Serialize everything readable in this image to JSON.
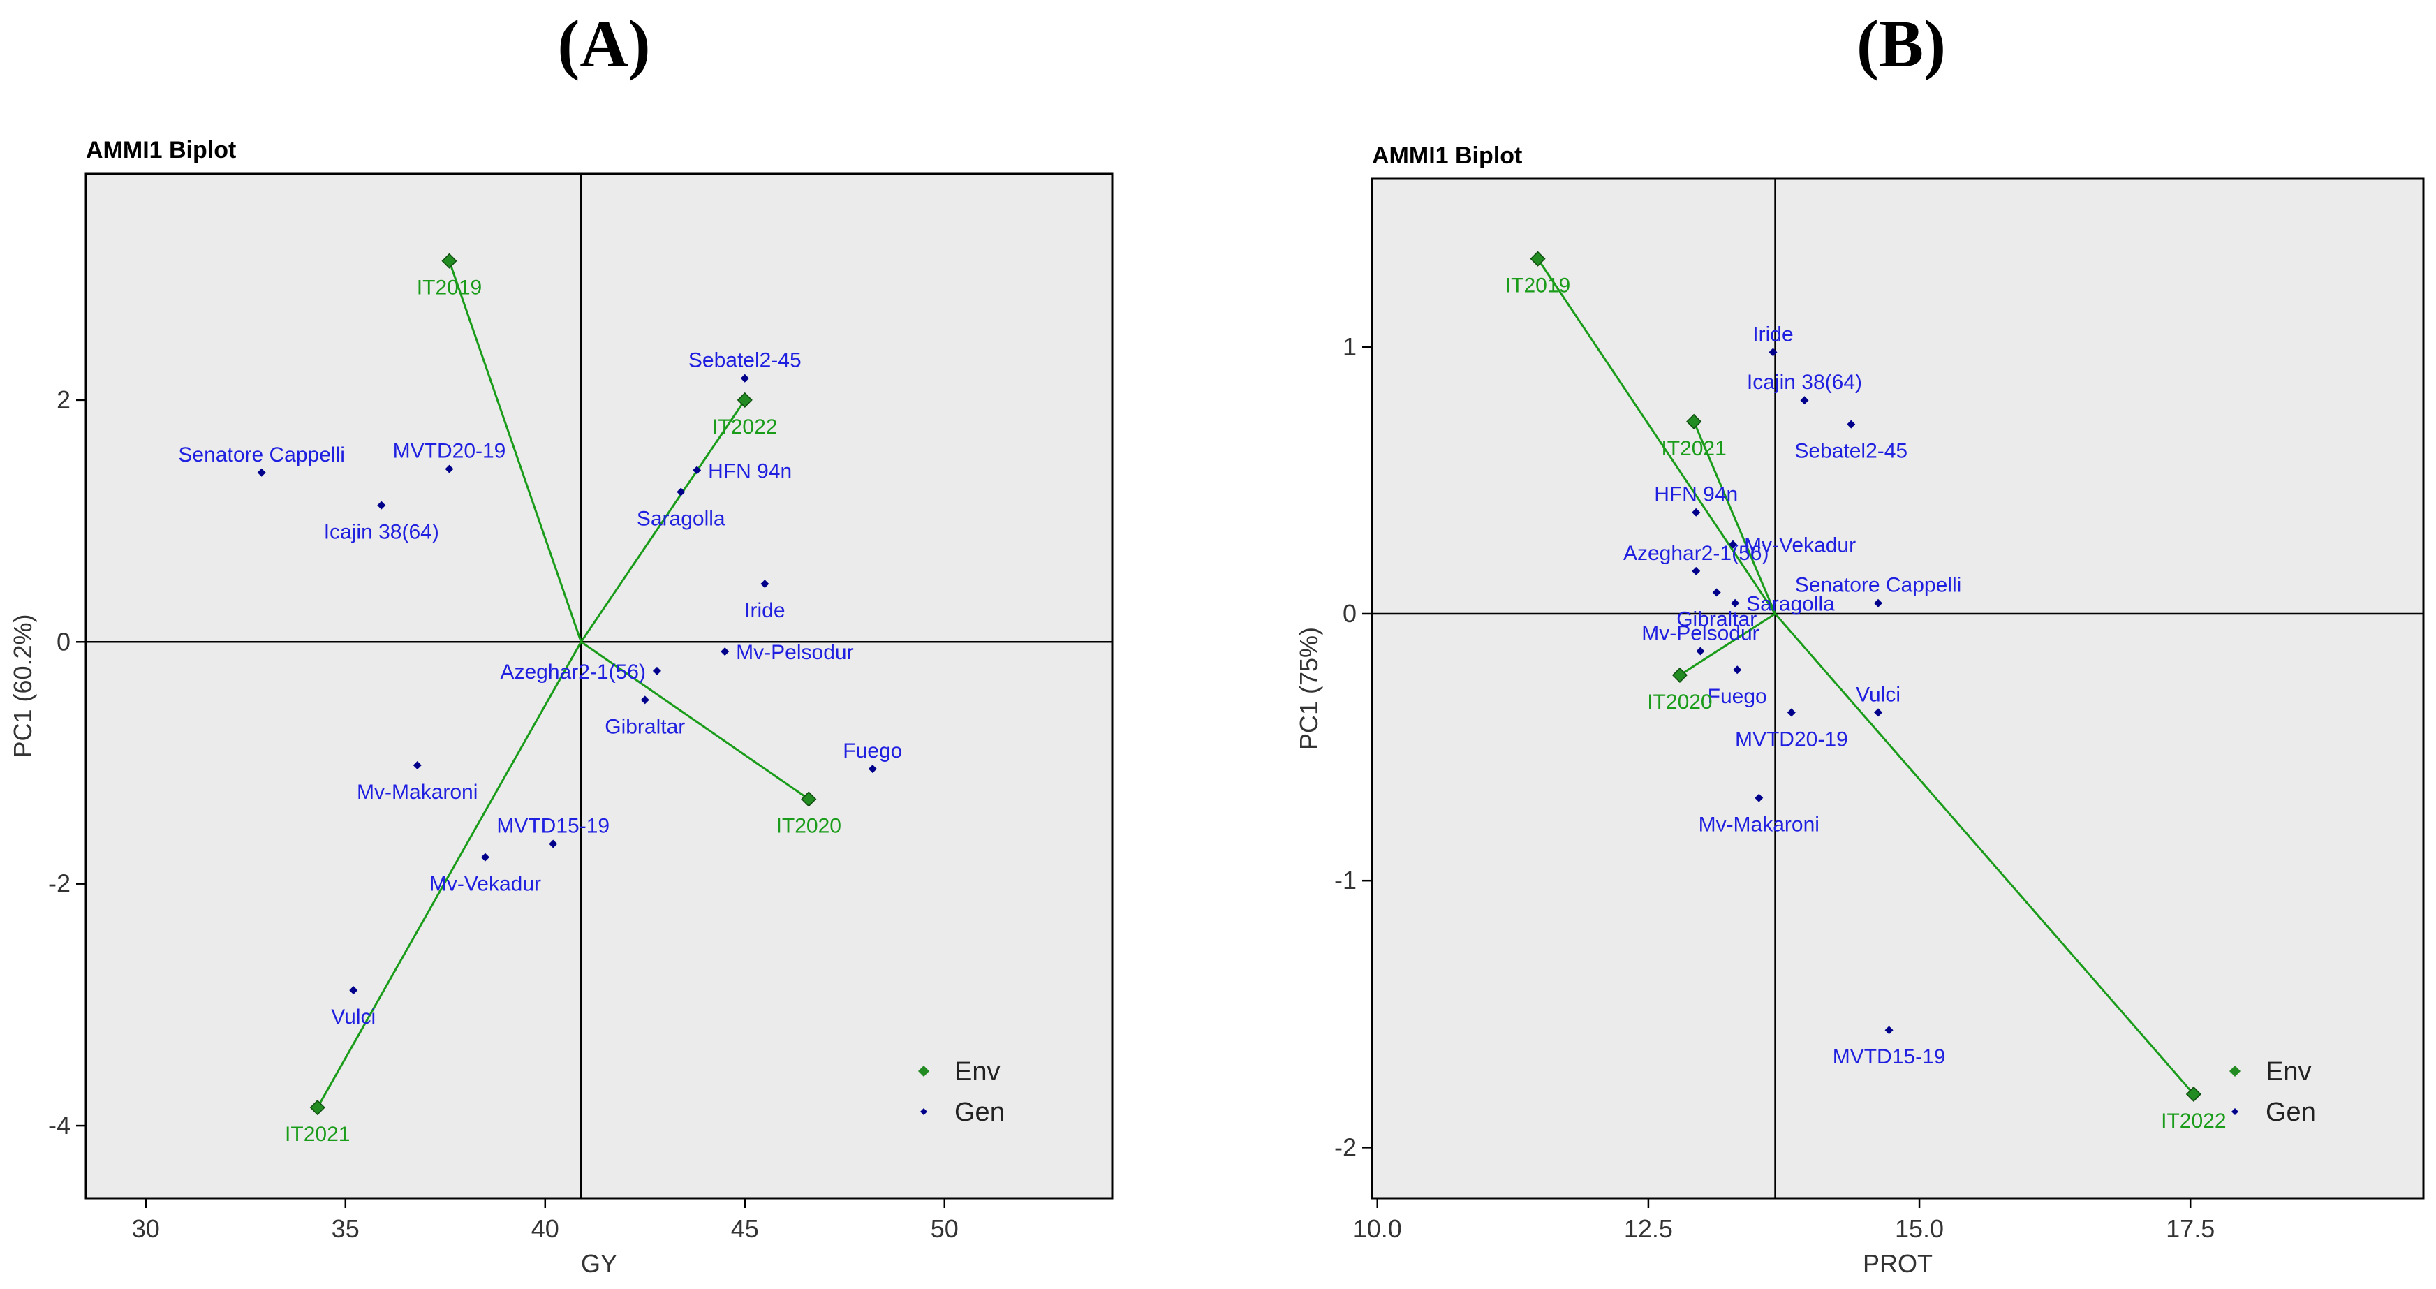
{
  "figure": {
    "panels": [
      {
        "label": "(A)"
      },
      {
        "label": "(B)"
      }
    ]
  },
  "colors": {
    "env": "#1a9c1a",
    "env_marker": "#228b22",
    "gen": "#1f1fe0",
    "gen_marker": "#00008b",
    "axis": "#000000"
  },
  "chart_data": [
    {
      "type": "scatter",
      "title": "AMMI1 Biplot",
      "xlabel": "GY",
      "ylabel": "PC1 (60.2%)",
      "xlim": [
        28.5,
        54.2
      ],
      "ylim": [
        -4.6,
        3.87
      ],
      "xticks": [
        30,
        35,
        40,
        45,
        50
      ],
      "xtick_labels": [
        "30",
        "35",
        "40",
        "45",
        "50"
      ],
      "yticks": [
        -4,
        -2,
        0,
        2
      ],
      "ytick_labels": [
        "-4",
        "-2",
        "0",
        "2"
      ],
      "center": {
        "x": 40.9,
        "y": 0
      },
      "legend": {
        "position": "bottom-right",
        "entries": [
          {
            "label": "Env"
          },
          {
            "label": "Gen"
          }
        ]
      },
      "env": [
        {
          "name": "IT2019",
          "x": 37.6,
          "y": 3.15,
          "label_pos": "below"
        },
        {
          "name": "IT2022",
          "x": 45.0,
          "y": 2.0,
          "label_pos": "below"
        },
        {
          "name": "IT2020",
          "x": 46.6,
          "y": -1.3,
          "label_pos": "below"
        },
        {
          "name": "IT2021",
          "x": 34.3,
          "y": -3.85,
          "label_pos": "below"
        }
      ],
      "gen": [
        {
          "name": "Sebatel2-45",
          "x": 45.0,
          "y": 2.18,
          "label_pos": "above"
        },
        {
          "name": "HFN 94n",
          "x": 43.8,
          "y": 1.42,
          "label_pos": "right"
        },
        {
          "name": "Saragolla",
          "x": 43.4,
          "y": 1.24,
          "label_pos": "below"
        },
        {
          "name": "Senatore Cappelli",
          "x": 32.9,
          "y": 1.4,
          "label_pos": "above"
        },
        {
          "name": "MVTD20-19",
          "x": 37.6,
          "y": 1.43,
          "label_pos": "above"
        },
        {
          "name": "Icajin 38(64)",
          "x": 35.9,
          "y": 1.13,
          "label_pos": "below"
        },
        {
          "name": "Iride",
          "x": 45.5,
          "y": 0.48,
          "label_pos": "below"
        },
        {
          "name": "Mv-Pelsodur",
          "x": 44.5,
          "y": -0.08,
          "label_pos": "right"
        },
        {
          "name": "Azeghar2-1(56)",
          "x": 42.8,
          "y": -0.24,
          "label_pos": "left"
        },
        {
          "name": "Gibraltar",
          "x": 42.5,
          "y": -0.48,
          "label_pos": "below"
        },
        {
          "name": "Fuego",
          "x": 48.2,
          "y": -1.05,
          "label_pos": "above"
        },
        {
          "name": "Mv-Makaroni",
          "x": 36.8,
          "y": -1.02,
          "label_pos": "below"
        },
        {
          "name": "MVTD15-19",
          "x": 40.2,
          "y": -1.67,
          "label_pos": "above"
        },
        {
          "name": "Mv-Vekadur",
          "x": 38.5,
          "y": -1.78,
          "label_pos": "below"
        },
        {
          "name": "Vulci",
          "x": 35.2,
          "y": -2.88,
          "label_pos": "below"
        }
      ]
    },
    {
      "type": "scatter",
      "title": "AMMI1 Biplot",
      "xlabel": "PROT",
      "ylabel": "PC1 (75%)",
      "xlim": [
        9.95,
        19.65
      ],
      "ylim": [
        -2.19,
        1.63
      ],
      "xticks": [
        10.0,
        12.5,
        15.0,
        17.5
      ],
      "xtick_labels": [
        "10.0",
        "12.5",
        "15.0",
        "17.5"
      ],
      "yticks": [
        -2,
        -1,
        0,
        1
      ],
      "ytick_labels": [
        "-2",
        "-1",
        "0",
        "1"
      ],
      "center": {
        "x": 13.67,
        "y": 0
      },
      "legend": {
        "position": "bottom-right",
        "entries": [
          {
            "label": "Env"
          },
          {
            "label": "Gen"
          }
        ]
      },
      "env": [
        {
          "name": "IT2019",
          "x": 11.48,
          "y": 1.33,
          "label_pos": "below"
        },
        {
          "name": "IT2021",
          "x": 12.92,
          "y": 0.72,
          "label_pos": "below"
        },
        {
          "name": "IT2020",
          "x": 12.79,
          "y": -0.23,
          "label_pos": "below"
        },
        {
          "name": "IT2022",
          "x": 17.53,
          "y": -1.8,
          "label_pos": "below"
        }
      ],
      "gen": [
        {
          "name": "Iride",
          "x": 13.65,
          "y": 0.98,
          "label_pos": "above"
        },
        {
          "name": "Icajin 38(64)",
          "x": 13.94,
          "y": 0.8,
          "label_pos": "above"
        },
        {
          "name": "Sebatel2-45",
          "x": 14.37,
          "y": 0.71,
          "label_pos": "below"
        },
        {
          "name": "HFN 94n",
          "x": 12.94,
          "y": 0.38,
          "label_pos": "above"
        },
        {
          "name": "Mv-Vekadur",
          "x": 13.28,
          "y": 0.26,
          "label_pos": "right"
        },
        {
          "name": "Azeghar2-1(56)",
          "x": 12.94,
          "y": 0.16,
          "label_pos": "above"
        },
        {
          "name": "Gibraltar",
          "x": 13.13,
          "y": 0.08,
          "label_pos": "below"
        },
        {
          "name": "Senatore Cappelli",
          "x": 14.62,
          "y": 0.04,
          "label_pos": "above"
        },
        {
          "name": "Saragolla",
          "x": 13.3,
          "y": 0.04,
          "label_pos": "right"
        },
        {
          "name": "Mv-Pelsodur",
          "x": 12.98,
          "y": -0.14,
          "label_pos": "above"
        },
        {
          "name": "Fuego",
          "x": 13.32,
          "y": -0.21,
          "label_pos": "below"
        },
        {
          "name": "MVTD20-19",
          "x": 13.82,
          "y": -0.37,
          "label_pos": "below"
        },
        {
          "name": "Vulci",
          "x": 14.62,
          "y": -0.37,
          "label_pos": "above"
        },
        {
          "name": "Mv-Makaroni",
          "x": 13.52,
          "y": -0.69,
          "label_pos": "below"
        },
        {
          "name": "MVTD15-19",
          "x": 14.72,
          "y": -1.56,
          "label_pos": "below"
        }
      ]
    }
  ]
}
